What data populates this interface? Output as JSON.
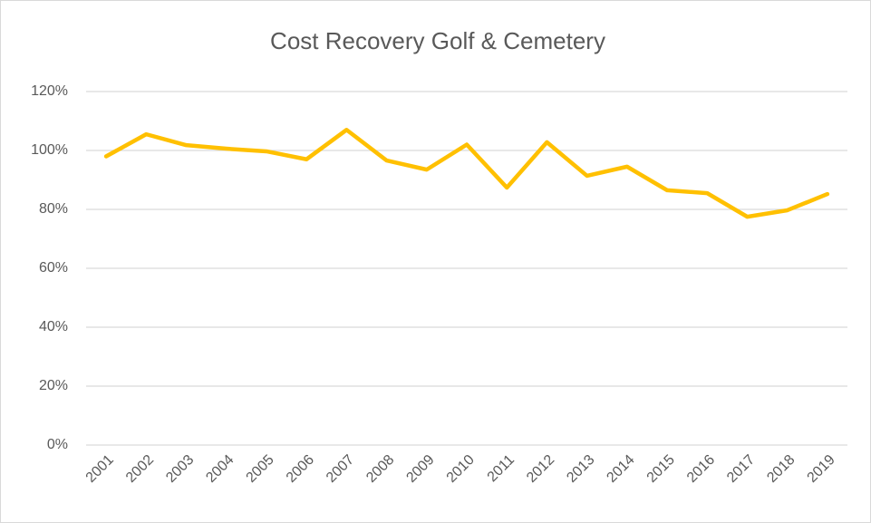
{
  "chart_data": {
    "type": "line",
    "title": "Cost Recovery Golf & Cemetery",
    "categories": [
      "2001",
      "2002",
      "2003",
      "2004",
      "2005",
      "2006",
      "2007",
      "2008",
      "2009",
      "2010",
      "2011",
      "2012",
      "2013",
      "2014",
      "2015",
      "2016",
      "2017",
      "2018",
      "2019"
    ],
    "series": [
      {
        "name": "Cost Recovery",
        "color": "#ffc000",
        "values": [
          98,
          105.5,
          101.8,
          100.6,
          99.7,
          97,
          107,
          96.6,
          93.5,
          102,
          87.4,
          102.8,
          91.4,
          94.5,
          86.5,
          85.5,
          77.5,
          79.7,
          85.2
        ]
      }
    ],
    "ylim": [
      0,
      120
    ],
    "yticks": [
      {
        "value": 0,
        "label": "0%"
      },
      {
        "value": 20,
        "label": "20%"
      },
      {
        "value": 40,
        "label": "40%"
      },
      {
        "value": 60,
        "label": "60%"
      },
      {
        "value": 80,
        "label": "80%"
      },
      {
        "value": 100,
        "label": "100%"
      },
      {
        "value": 120,
        "label": "120%"
      }
    ],
    "grid": true
  }
}
